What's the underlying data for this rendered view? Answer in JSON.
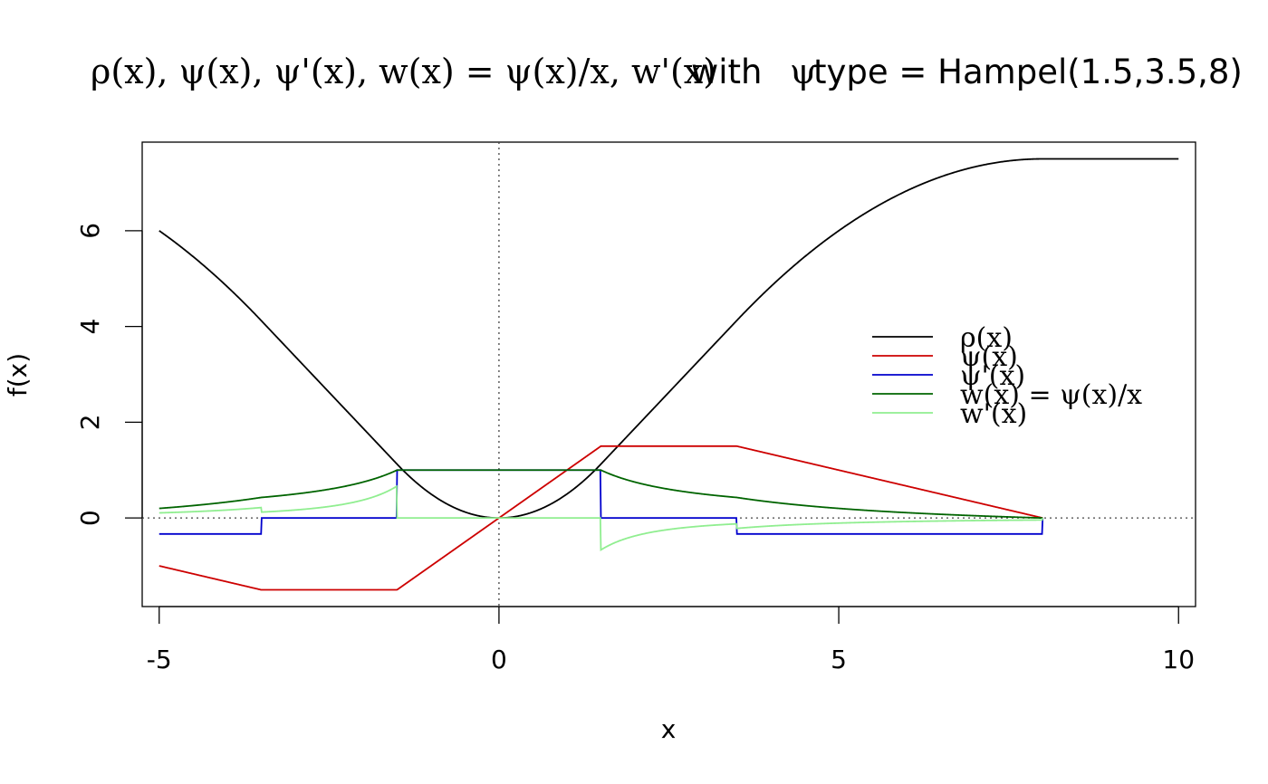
{
  "chart_data": {
    "type": "line",
    "title": {
      "rho": "ρ(x), ψ(x), ψ'(x), w(x) = ψ(x)/x, w'(x)",
      "with": "with",
      "psi": "ψ",
      "type_eq": "type = Hampel(1.5,3.5,8)"
    },
    "xlabel": "x",
    "ylabel": "f(x)",
    "xlim": [
      -5.25,
      10.25
    ],
    "ylim": [
      -1.85,
      7.85
    ],
    "xticks": [
      -5,
      0,
      5,
      10
    ],
    "xtick_labels": [
      "-5",
      "0",
      "5",
      "10"
    ],
    "yticks": [
      0,
      2,
      4,
      6
    ],
    "ytick_labels": [
      "0",
      "2",
      "4",
      "6"
    ],
    "reference_lines": {
      "h": 0,
      "v": 0,
      "style": "dotted"
    },
    "hampel_params": {
      "a": 1.5,
      "b": 3.5,
      "r": 8
    },
    "legend": {
      "position": "right",
      "entries": [
        {
          "key": "rho",
          "label": "ρ(x)",
          "color": "#000000"
        },
        {
          "key": "psi",
          "label": "ψ(x)",
          "color": "#cd0000"
        },
        {
          "key": "dpsi",
          "label": "ψ'(x)",
          "color": "#0000cd"
        },
        {
          "key": "w",
          "label": "w(x) = ψ(x)/x",
          "color": "#006400"
        },
        {
          "key": "dw",
          "label": "w'(x)",
          "color": "#90ee90"
        }
      ]
    },
    "series": [
      {
        "key": "rho",
        "color": "#000000",
        "x_range": [
          -5,
          10
        ]
      },
      {
        "key": "psi",
        "color": "#cd0000",
        "x_range": [
          -5,
          8
        ]
      },
      {
        "key": "dpsi",
        "color": "#0000cd",
        "x_range": [
          -5,
          8
        ]
      },
      {
        "key": "w",
        "color": "#006400",
        "x_range": [
          -5,
          8
        ]
      },
      {
        "key": "dw",
        "color": "#90ee90",
        "x_range": [
          -5,
          8
        ]
      }
    ]
  }
}
